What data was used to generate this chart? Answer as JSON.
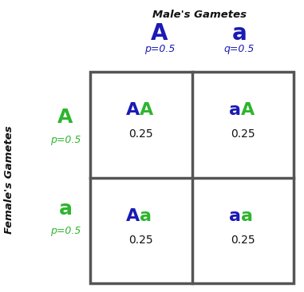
{
  "title": "Male's Gametes",
  "col_headers": [
    "A",
    "a"
  ],
  "col_sub": [
    "p=0.5",
    "q=0.5"
  ],
  "row_headers": [
    "A",
    "a"
  ],
  "row_sub": [
    "p=0.5",
    "p=0.5"
  ],
  "ylabel": "Female's Gametes",
  "color_green": "#2db52d",
  "color_blue": "#1a1ab5",
  "color_black": "#111111",
  "grid_color": "#555555",
  "bg_color": "#ffffff",
  "cell_genotypes": [
    [
      "A",
      "blue",
      "A",
      "green"
    ],
    [
      "a",
      "blue",
      "A",
      "green"
    ],
    [
      "A",
      "blue",
      "a",
      "green"
    ],
    [
      "a",
      "blue",
      "a",
      "green"
    ]
  ],
  "cell_values": [
    "0.25",
    "0.25",
    "0.25",
    "0.25"
  ]
}
